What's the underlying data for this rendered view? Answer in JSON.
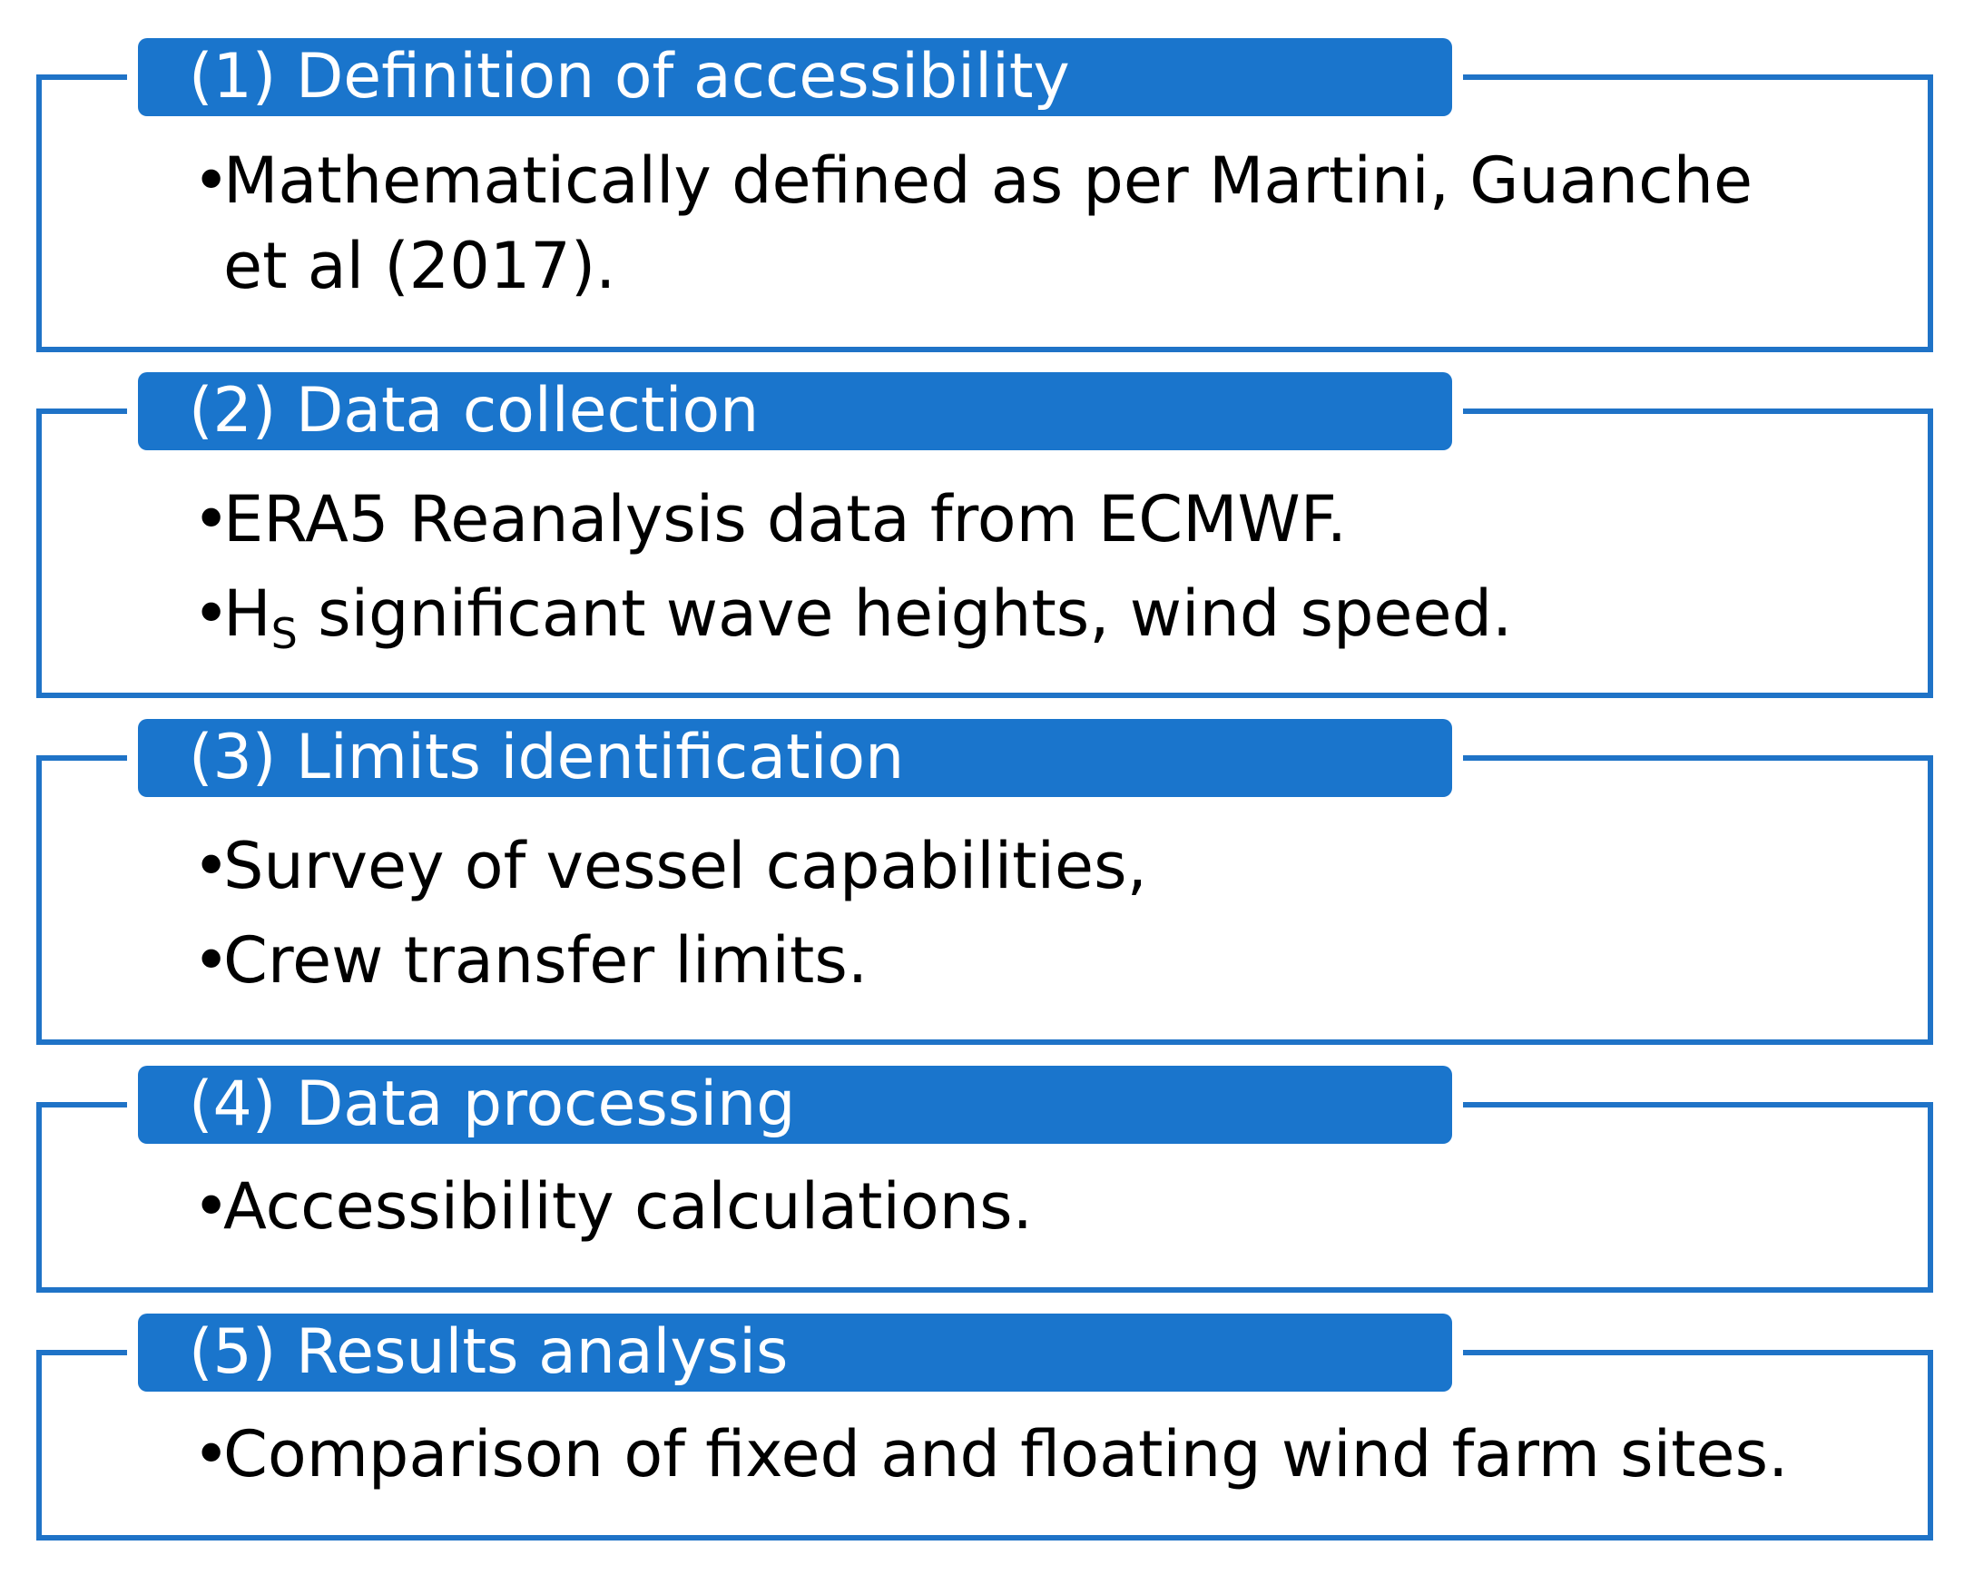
{
  "colors": {
    "frame": "#1f73c7",
    "header_fill": "#1a75cc",
    "header_text": "#ffffff",
    "body_text": "#000000"
  },
  "bullet_glyph": "•",
  "steps": [
    {
      "title": "(1) Definition of accessibility",
      "bullets": [
        "Mathematically defined as per Martini, Guanche et al (2017)."
      ]
    },
    {
      "title": "(2) Data collection",
      "bullets": [
        "ERA5 Reanalysis data from ECMWF."
      ],
      "hs_bullet": {
        "symbol": "H",
        "subscript": "S",
        "rest": " significant wave heights, wind speed."
      }
    },
    {
      "title": "(3) Limits identification",
      "bullets": [
        "Survey of vessel capabilities,",
        "Crew transfer limits."
      ]
    },
    {
      "title": "(4) Data processing",
      "bullets": [
        "Accessibility calculations."
      ]
    },
    {
      "title": "(5) Results analysis",
      "bullets": [
        "Comparison of fixed and floating wind farm sites."
      ]
    }
  ]
}
